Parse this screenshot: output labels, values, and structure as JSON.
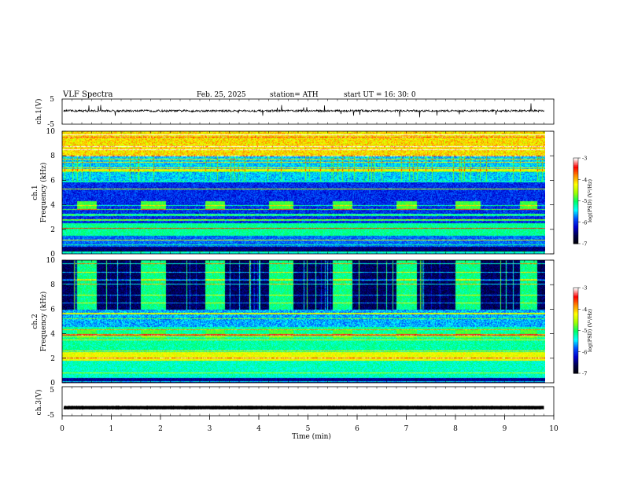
{
  "header": {
    "title": "VLF  Spectra",
    "date": "Feb. 25, 2025",
    "station": "station= ATH",
    "start": "start  UT  =   16: 30: 0"
  },
  "colors": {
    "spectrogram_scale": [
      "#000000",
      "#00004a",
      "#0000cd",
      "#0050ff",
      "#00ffff",
      "#00ff64",
      "#a0ff00",
      "#ffff00",
      "#ff8c00",
      "#ff0000",
      "#ffffff"
    ],
    "trace": "#000000"
  },
  "chart_data": [
    {
      "type": "line",
      "name": "ch1-waveform",
      "ylabel": "ch.1(V)",
      "ylim": [
        -5,
        5
      ],
      "yticks": [
        "5",
        "-5"
      ],
      "baseline_v": 0.3,
      "noise_v": 0.4,
      "x_range_min": [
        0,
        9.8
      ]
    },
    {
      "type": "heatmap",
      "name": "ch1-spectrogram",
      "ylabel": "ch.1\nFrequency (kHz)",
      "ylim": [
        0,
        10
      ],
      "yticks": [
        "0",
        "2",
        "4",
        "6",
        "8",
        "10"
      ],
      "x_range_min": [
        0,
        9.8
      ],
      "colorbar": {
        "label": "log(PSD) (V²/Hz)",
        "range": [
          -7,
          -3
        ],
        "ticks": [
          "-3",
          "-4",
          "-5",
          "-6",
          "-7"
        ]
      },
      "bursts": {
        "center_khz": 4.0,
        "half_width_khz": 0.35,
        "segments_min": [
          [
            0.3,
            0.7
          ],
          [
            1.6,
            2.1
          ],
          [
            2.9,
            3.3
          ],
          [
            4.2,
            4.7
          ],
          [
            5.5,
            5.9
          ],
          [
            6.8,
            7.2
          ],
          [
            8.0,
            8.5
          ],
          [
            9.3,
            9.65
          ]
        ]
      }
    },
    {
      "type": "heatmap",
      "name": "ch2-spectrogram",
      "ylabel": "ch.2\nFrequency (kHz)",
      "ylim": [
        0,
        10
      ],
      "yticks": [
        "0",
        "2",
        "4",
        "6",
        "8",
        "10"
      ],
      "x_range_min": [
        0,
        9.8
      ],
      "colorbar": {
        "label": "log(PSD) (V²/Hz)",
        "range": [
          -7,
          -3
        ],
        "ticks": [
          "-3",
          "-4",
          "-5",
          "-6",
          "-7"
        ]
      },
      "bursts": {
        "center_khz": 4.0,
        "half_width_khz": 0.35,
        "segments_min": [
          [
            0.3,
            0.7
          ],
          [
            1.6,
            2.1
          ],
          [
            2.9,
            3.3
          ],
          [
            4.2,
            4.7
          ],
          [
            5.5,
            5.9
          ],
          [
            6.8,
            7.2
          ],
          [
            8.0,
            8.5
          ],
          [
            9.3,
            9.65
          ]
        ]
      }
    },
    {
      "type": "line",
      "name": "ch3-waveform",
      "ylabel": "ch.3(V)",
      "ylim": [
        -5,
        5
      ],
      "yticks": [
        "5",
        "-5"
      ],
      "baseline_v": -2.2,
      "noise_v": 0.05,
      "x_range_min": [
        0,
        9.8
      ]
    }
  ],
  "xaxis": {
    "label": "Time  (min)",
    "range": [
      0,
      10
    ],
    "ticks": [
      "0",
      "1",
      "2",
      "3",
      "4",
      "5",
      "6",
      "7",
      "8",
      "9",
      "10"
    ]
  }
}
